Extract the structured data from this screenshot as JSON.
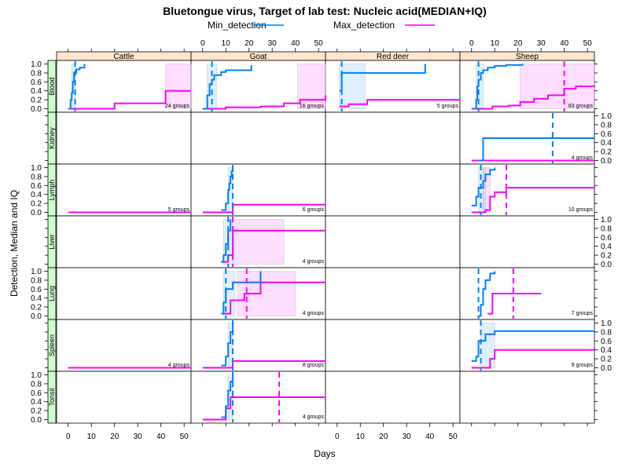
{
  "chart_data": {
    "type": "line",
    "title": "Bluetongue virus, Target of lab test: Nucleic acid(MEDIAN+IQ)",
    "xlabel": "Days",
    "ylabel": "Detection, Median and IQ",
    "xlim": [
      -5,
      53
    ],
    "ylim": [
      -0.08,
      1.08
    ],
    "x_ticks": [
      0,
      10,
      20,
      30,
      40,
      50
    ],
    "y_ticks": [
      0.0,
      0.2,
      0.4,
      0.6,
      0.8,
      1.0
    ],
    "y_tick_labels": [
      "0.0",
      "0.2",
      "0.4",
      "0.6",
      "0.8",
      "1.0"
    ],
    "legend": {
      "placement": "top",
      "entries": [
        {
          "name": "Min_detection",
          "color": "#0080ff"
        },
        {
          "name": "Max_detection",
          "color": "#ff00ff"
        }
      ]
    },
    "columns": [
      "Cattle",
      "Goat",
      "Red deer",
      "Sheep"
    ],
    "rows": [
      "Blood",
      "Kidney",
      "Lymph",
      "Liver",
      "Lung",
      "Spleen",
      "Tonsil"
    ],
    "panels": [
      {
        "row": "Blood",
        "col": "Cattle",
        "groups_label": "24 groups",
        "min": {
          "steps": [
            [
              0,
              0
            ],
            [
              1,
              0.2
            ],
            [
              1.5,
              0.35
            ],
            [
              2,
              0.6
            ],
            [
              2.5,
              0.8
            ],
            [
              3.5,
              0.88
            ],
            [
              5,
              0.92
            ],
            [
              7,
              1.0
            ]
          ],
          "median": 3,
          "iq": [
            1.5,
            3
          ]
        },
        "max": {
          "steps": [
            [
              0,
              0
            ],
            [
              20,
              0.12
            ],
            [
              42,
              0.16
            ],
            [
              42,
              0.4
            ],
            [
              53,
              0.4
            ]
          ],
          "iq": [
            42,
            53
          ]
        }
      },
      {
        "row": "Blood",
        "col": "Goat",
        "groups_label": "16 groups",
        "min": {
          "steps": [
            [
              0,
              0
            ],
            [
              2,
              0.3
            ],
            [
              3,
              0.55
            ],
            [
              4,
              0.65
            ],
            [
              5,
              0.75
            ],
            [
              8,
              0.82
            ],
            [
              10,
              0.86
            ],
            [
              21,
              0.98
            ]
          ],
          "median": 4,
          "iq": [
            2,
            6
          ]
        },
        "max": {
          "steps": [
            [
              0,
              0
            ],
            [
              10,
              0.03
            ],
            [
              25,
              0.05
            ],
            [
              35,
              0.12
            ],
            [
              42,
              0.2
            ],
            [
              53,
              0.3
            ]
          ],
          "iq": [
            41,
            53
          ]
        }
      },
      {
        "row": "Blood",
        "col": "Red deer",
        "groups_label": "5 groups",
        "min": {
          "steps": [
            [
              1,
              0.4
            ],
            [
              2,
              0.8
            ],
            [
              38,
              1.0
            ]
          ],
          "median": 2,
          "iq": [
            1,
            12
          ]
        },
        "max": {
          "steps": [
            [
              1,
              0.05
            ],
            [
              5,
              0.1
            ],
            [
              13,
              0.2
            ],
            [
              53,
              0.2
            ]
          ]
        }
      },
      {
        "row": "Blood",
        "col": "Sheep",
        "groups_label": "83 groups",
        "min": {
          "steps": [
            [
              1,
              0
            ],
            [
              2,
              0.2
            ],
            [
              2.5,
              0.5
            ],
            [
              3,
              0.65
            ],
            [
              4,
              0.8
            ],
            [
              5,
              0.86
            ],
            [
              7,
              0.92
            ],
            [
              10,
              0.96
            ],
            [
              15,
              0.98
            ],
            [
              22,
              1.0
            ]
          ],
          "median": 3,
          "iq": [
            2,
            5
          ]
        },
        "max": {
          "steps": [
            [
              0,
              0
            ],
            [
              9,
              0.05
            ],
            [
              16,
              0.07
            ],
            [
              21,
              0.15
            ],
            [
              27,
              0.22
            ],
            [
              33,
              0.3
            ],
            [
              40,
              0.45
            ],
            [
              45,
              0.5
            ],
            [
              53,
              0.52
            ]
          ],
          "median": 40,
          "iq": [
            21,
            53
          ]
        }
      },
      {
        "row": "Kidney",
        "col": "Sheep",
        "groups_label": "4 groups",
        "min": {
          "steps": [
            [
              3,
              0
            ],
            [
              5,
              0.5
            ],
            [
              53,
              0.5
            ]
          ],
          "median": 35
        },
        "max": {
          "steps": [
            [
              0,
              0
            ],
            [
              53,
              0
            ]
          ]
        }
      },
      {
        "row": "Lymph",
        "col": "Cattle",
        "groups_label": "5 groups",
        "max": {
          "steps": [
            [
              0,
              0
            ],
            [
              53,
              0
            ]
          ]
        }
      },
      {
        "row": "Lymph",
        "col": "Goat",
        "groups_label": "6 groups",
        "min": {
          "steps": [
            [
              8,
              0.05
            ],
            [
              10,
              0.2
            ],
            [
              11,
              0.5
            ],
            [
              11.5,
              0.65
            ],
            [
              12,
              0.8
            ],
            [
              12.5,
              0.92
            ],
            [
              13,
              1.0
            ]
          ],
          "median": 13,
          "iq": [
            11,
            13
          ]
        },
        "max": {
          "steps": [
            [
              0,
              0
            ],
            [
              12,
              0
            ],
            [
              13,
              0.17
            ],
            [
              53,
              0.17
            ]
          ]
        }
      },
      {
        "row": "Lymph",
        "col": "Sheep",
        "groups_label": "10 groups",
        "min": {
          "steps": [
            [
              0,
              0.15
            ],
            [
              2,
              0.35
            ],
            [
              3,
              0.55
            ],
            [
              5,
              0.7
            ],
            [
              6,
              0.85
            ],
            [
              8,
              0.95
            ],
            [
              10,
              1.0
            ]
          ],
          "median": 4,
          "iq": [
            3,
            6
          ]
        },
        "max": {
          "steps": [
            [
              0,
              0
            ],
            [
              6,
              0.05
            ],
            [
              8,
              0.35
            ],
            [
              10,
              0.45
            ],
            [
              15,
              0.55
            ],
            [
              53,
              0.55
            ]
          ],
          "median": 15,
          "iq": [
            5,
            8
          ]
        }
      },
      {
        "row": "Liver",
        "col": "Goat",
        "groups_label": "4 groups",
        "min": {
          "steps": [
            [
              8,
              0.05
            ],
            [
              9,
              0.2
            ],
            [
              10,
              0.45
            ],
            [
              11,
              0.75
            ],
            [
              12,
              1.0
            ]
          ],
          "median": 11,
          "iq": [
            9,
            13
          ]
        },
        "max": {
          "steps": [
            [
              8,
              0.05
            ],
            [
              11,
              0.2
            ],
            [
              13,
              0.75
            ],
            [
              53,
              0.75
            ]
          ],
          "median": 13,
          "iq": [
            13,
            35
          ]
        }
      },
      {
        "row": "Lung",
        "col": "Goat",
        "groups_label": "4 groups",
        "min": {
          "steps": [
            [
              8,
              0.05
            ],
            [
              9,
              0.3
            ],
            [
              10,
              0.6
            ],
            [
              13,
              0.75
            ],
            [
              25,
              1.0
            ]
          ],
          "median": 10,
          "iq": [
            9,
            14
          ]
        },
        "max": {
          "steps": [
            [
              9,
              0.05
            ],
            [
              12,
              0.35
            ],
            [
              18,
              0.5
            ],
            [
              25,
              0.75
            ],
            [
              53,
              0.75
            ]
          ],
          "median": 19,
          "iq": [
            15,
            40
          ]
        }
      },
      {
        "row": "Lung",
        "col": "Sheep",
        "groups_label": "7 groups",
        "min": {
          "steps": [
            [
              3,
              0
            ],
            [
              4,
              0.25
            ],
            [
              5,
              0.6
            ],
            [
              6,
              0.8
            ],
            [
              8,
              0.95
            ],
            [
              10,
              1.0
            ]
          ],
          "median": 3
        },
        "max": {
          "steps": [
            [
              7,
              0.05
            ],
            [
              9,
              0.5
            ],
            [
              30,
              0.5
            ]
          ],
          "median": 18
        }
      },
      {
        "row": "Spleen",
        "col": "Cattle",
        "groups_label": "4 groups",
        "max": {
          "steps": [
            [
              0,
              0
            ],
            [
              53,
              0
            ]
          ]
        }
      },
      {
        "row": "Spleen",
        "col": "Goat",
        "groups_label": "8 groups",
        "min": {
          "steps": [
            [
              8,
              0.05
            ],
            [
              10,
              0.25
            ],
            [
              11,
              0.55
            ],
            [
              12,
              0.8
            ],
            [
              13,
              1.0
            ]
          ],
          "median": 13,
          "iq": [
            11,
            13
          ]
        },
        "max": {
          "steps": [
            [
              0,
              0
            ],
            [
              12,
              0
            ],
            [
              13,
              0.15
            ],
            [
              53,
              0.15
            ]
          ]
        }
      },
      {
        "row": "Spleen",
        "col": "Sheep",
        "groups_label": "9 groups",
        "min": {
          "steps": [
            [
              0,
              0.15
            ],
            [
              2,
              0.25
            ],
            [
              3,
              0.6
            ],
            [
              6,
              0.75
            ],
            [
              10,
              0.82
            ],
            [
              53,
              0.82
            ]
          ],
          "median": 4,
          "iq": [
            4,
            10
          ]
        },
        "max": {
          "steps": [
            [
              0,
              0
            ],
            [
              5,
              0
            ],
            [
              8,
              0.2
            ],
            [
              10,
              0.4
            ],
            [
              53,
              0.4
            ]
          ]
        }
      },
      {
        "row": "Tonsil",
        "col": "Goat",
        "groups_label": "4 groups",
        "min": {
          "steps": [
            [
              8,
              0.05
            ],
            [
              10,
              0.3
            ],
            [
              11,
              0.65
            ],
            [
              12,
              0.85
            ],
            [
              13,
              1.0
            ]
          ],
          "median": 13,
          "iq": [
            11,
            13
          ]
        },
        "max": {
          "steps": [
            [
              0,
              0
            ],
            [
              8,
              0
            ],
            [
              10,
              0.25
            ],
            [
              12,
              0.5
            ],
            [
              53,
              0.5
            ]
          ],
          "median": 33
        }
      }
    ]
  }
}
